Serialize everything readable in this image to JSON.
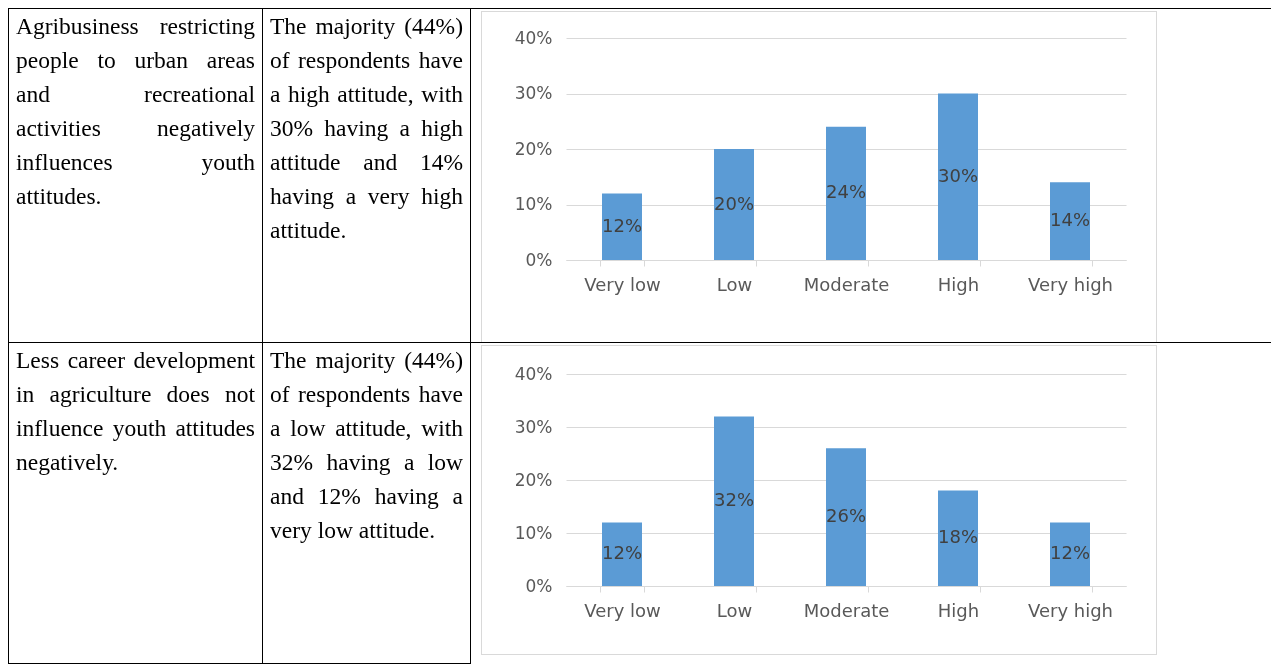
{
  "chart_data": [
    {
      "type": "other",
      "annotations": [
        "Agribusiness restricting people to urban areas and recreational activities negatively influences youth attitudes.",
        "The majority (44%) of respondents have a high attitude, with 30% having a high attitude and 14% having a very high attitude."
      ]
    },
    {
      "type": "bar",
      "categories": [
        "Very low",
        "Low",
        "Moderate",
        "High",
        "Very high"
      ],
      "values": [
        12,
        20,
        24,
        30,
        14
      ],
      "color": "#5b9bd5",
      "value_labels": [
        "12%",
        "20%",
        "24%",
        "30%",
        "14%"
      ],
      "ylim": [
        0,
        40
      ],
      "yticks": [
        {
          "value": 0,
          "label": "0%"
        },
        {
          "value": 10,
          "label": "10%"
        },
        {
          "value": 20,
          "label": "20%"
        },
        {
          "value": 30,
          "label": "30%"
        },
        {
          "value": 40,
          "label": "40%"
        }
      ],
      "grid": "y"
    },
    {
      "type": "other",
      "annotations": [
        "Less career development in agriculture does not influence youth attitudes negatively.",
        "The majority (44%) of respondents have a low attitude, with 32% having a low and 12% having a very low attitude."
      ]
    },
    {
      "type": "bar",
      "categories": [
        "Very low",
        "Low",
        "Moderate",
        "High",
        "Very high"
      ],
      "values": [
        12,
        32,
        26,
        18,
        12
      ],
      "color": "#5b9bd5",
      "value_labels": [
        "12%",
        "32%",
        "26%",
        "18%",
        "12%"
      ],
      "ylim": [
        0,
        40
      ],
      "yticks": [
        {
          "value": 0,
          "label": "0%"
        },
        {
          "value": 10,
          "label": "10%"
        },
        {
          "value": 20,
          "label": "20%"
        },
        {
          "value": 30,
          "label": "30%"
        },
        {
          "value": 40,
          "label": "40%"
        }
      ],
      "grid": "y"
    }
  ]
}
